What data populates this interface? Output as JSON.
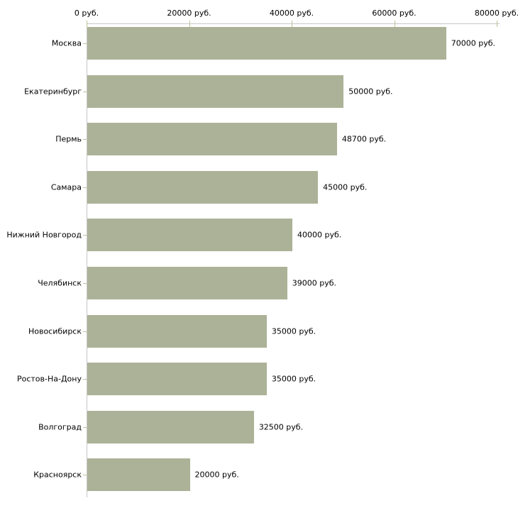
{
  "chart_data": {
    "type": "bar",
    "orientation": "horizontal",
    "title": "",
    "xlabel": "",
    "ylabel": "",
    "categories": [
      "Москва",
      "Екатеринбург",
      "Пермь",
      "Самара",
      "Нижний Новгород",
      "Челябинск",
      "Новосибирск",
      "Ростов-На-Дону",
      "Волгоград",
      "Красноярск"
    ],
    "values": [
      70000,
      50000,
      48700,
      45000,
      40000,
      39000,
      35000,
      35000,
      32500,
      20000
    ],
    "bar_value_labels": [
      "70000 руб.",
      "50000 руб.",
      "48700 руб.",
      "45000 руб.",
      "40000 руб.",
      "39000 руб.",
      "35000 руб.",
      "35000 руб.",
      "32500 руб.",
      "20000 руб."
    ],
    "x_axis": {
      "position": "top",
      "min": 0,
      "max": 80000,
      "tick_values": [
        0,
        20000,
        40000,
        60000,
        80000
      ],
      "tick_labels": [
        "0 руб.",
        "20000 руб.",
        "40000 руб.",
        "60000 руб.",
        "80000 руб."
      ]
    },
    "grid": false,
    "legend": false,
    "colors": {
      "bar": "#acb297",
      "axis_line": "#c6c6c6",
      "tick": "#c3bf95",
      "text": "#000000",
      "background": "#ffffff"
    }
  }
}
